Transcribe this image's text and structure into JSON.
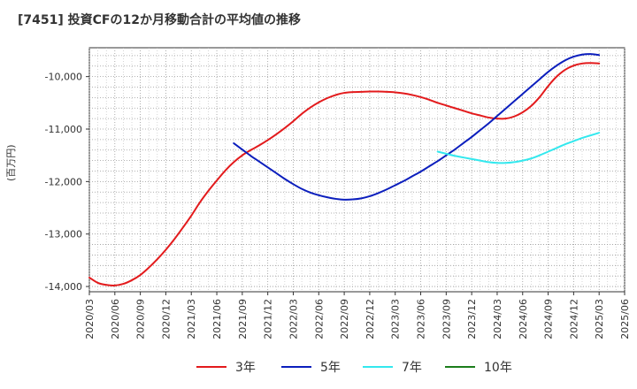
{
  "chart_data": {
    "type": "line",
    "title": "[7451]  投資CFの12か月移動合計の平均値の推移",
    "ylabel": "(百万円)",
    "xlabel": "",
    "ylim": [
      -14100,
      -9450
    ],
    "y_ticks": [
      -10000,
      -11000,
      -12000,
      -13000,
      -14000
    ],
    "y_tick_labels": [
      "-10,000",
      "-11,000",
      "-12,000",
      "-13,000",
      "-14,000"
    ],
    "x_tick_labels": [
      "2020/03",
      "2020/06",
      "2020/09",
      "2020/12",
      "2021/03",
      "2021/06",
      "2021/09",
      "2021/12",
      "2022/03",
      "2022/06",
      "2022/09",
      "2022/12",
      "2023/03",
      "2023/06",
      "2023/09",
      "2023/12",
      "2024/03",
      "2024/06",
      "2024/09",
      "2024/12",
      "2025/03",
      "2025/06"
    ],
    "grid": true,
    "legend_position": "bottom",
    "series": [
      {
        "name": "3年",
        "color": "#e31a1c",
        "x": [
          "2020/03",
          "2020/04",
          "2020/05",
          "2020/06",
          "2020/07",
          "2020/08",
          "2020/09",
          "2020/10",
          "2020/11",
          "2020/12",
          "2021/01",
          "2021/02",
          "2021/03",
          "2021/04",
          "2021/05",
          "2021/06",
          "2021/07",
          "2021/08",
          "2021/09",
          "2021/10",
          "2021/11",
          "2021/12",
          "2022/01",
          "2022/02",
          "2022/03",
          "2022/04",
          "2022/05",
          "2022/06",
          "2022/07",
          "2022/08",
          "2022/09",
          "2022/10",
          "2022/11",
          "2022/12",
          "2023/01",
          "2023/02",
          "2023/03",
          "2023/04",
          "2023/05",
          "2023/06",
          "2023/07",
          "2023/08",
          "2023/09",
          "2023/10",
          "2023/11",
          "2023/12",
          "2024/01",
          "2024/02",
          "2024/03",
          "2024/04",
          "2024/05",
          "2024/06",
          "2024/07",
          "2024/08",
          "2024/09",
          "2024/10",
          "2024/11",
          "2024/12",
          "2025/01",
          "2025/02",
          "2025/03"
        ],
        "values": [
          -13830,
          -13930,
          -13970,
          -13980,
          -13950,
          -13880,
          -13780,
          -13640,
          -13480,
          -13300,
          -13100,
          -12880,
          -12650,
          -12400,
          -12180,
          -11980,
          -11790,
          -11630,
          -11500,
          -11400,
          -11310,
          -11210,
          -11100,
          -10980,
          -10850,
          -10710,
          -10590,
          -10490,
          -10410,
          -10350,
          -10310,
          -10295,
          -10290,
          -10285,
          -10285,
          -10290,
          -10300,
          -10320,
          -10350,
          -10390,
          -10440,
          -10500,
          -10550,
          -10600,
          -10650,
          -10700,
          -10740,
          -10780,
          -10800,
          -10800,
          -10760,
          -10680,
          -10560,
          -10390,
          -10180,
          -10000,
          -9870,
          -9790,
          -9750,
          -9740,
          -9750
        ]
      },
      {
        "name": "5年",
        "color": "#0b1ebd",
        "x": [
          "2021/08",
          "2021/09",
          "2021/10",
          "2021/11",
          "2021/12",
          "2022/01",
          "2022/02",
          "2022/03",
          "2022/04",
          "2022/05",
          "2022/06",
          "2022/07",
          "2022/08",
          "2022/09",
          "2022/10",
          "2022/11",
          "2022/12",
          "2023/01",
          "2023/02",
          "2023/03",
          "2023/04",
          "2023/05",
          "2023/06",
          "2023/07",
          "2023/08",
          "2023/09",
          "2023/10",
          "2023/11",
          "2023/12",
          "2024/01",
          "2024/02",
          "2024/03",
          "2024/04",
          "2024/05",
          "2024/06",
          "2024/07",
          "2024/08",
          "2024/09",
          "2024/10",
          "2024/11",
          "2024/12",
          "2025/01",
          "2025/02",
          "2025/03"
        ],
        "values": [
          -11270,
          -11390,
          -11510,
          -11620,
          -11730,
          -11840,
          -11950,
          -12050,
          -12140,
          -12210,
          -12260,
          -12300,
          -12330,
          -12345,
          -12340,
          -12320,
          -12280,
          -12220,
          -12150,
          -12070,
          -11990,
          -11900,
          -11810,
          -11710,
          -11610,
          -11500,
          -11390,
          -11270,
          -11150,
          -11020,
          -10890,
          -10750,
          -10610,
          -10470,
          -10330,
          -10190,
          -10050,
          -9910,
          -9790,
          -9690,
          -9620,
          -9580,
          -9570,
          -9590
        ]
      },
      {
        "name": "7年",
        "color": "#33e8ee",
        "x": [
          "2023/08",
          "2023/09",
          "2023/10",
          "2023/11",
          "2023/12",
          "2024/01",
          "2024/02",
          "2024/03",
          "2024/04",
          "2024/05",
          "2024/06",
          "2024/07",
          "2024/08",
          "2024/09",
          "2024/10",
          "2024/11",
          "2024/12",
          "2025/01",
          "2025/02",
          "2025/03"
        ],
        "values": [
          -11430,
          -11470,
          -11510,
          -11540,
          -11570,
          -11600,
          -11630,
          -11645,
          -11645,
          -11630,
          -11600,
          -11560,
          -11500,
          -11430,
          -11360,
          -11290,
          -11230,
          -11170,
          -11120,
          -11070
        ]
      },
      {
        "name": "10年",
        "color": "#1b7d1b",
        "x": [],
        "values": []
      }
    ]
  }
}
